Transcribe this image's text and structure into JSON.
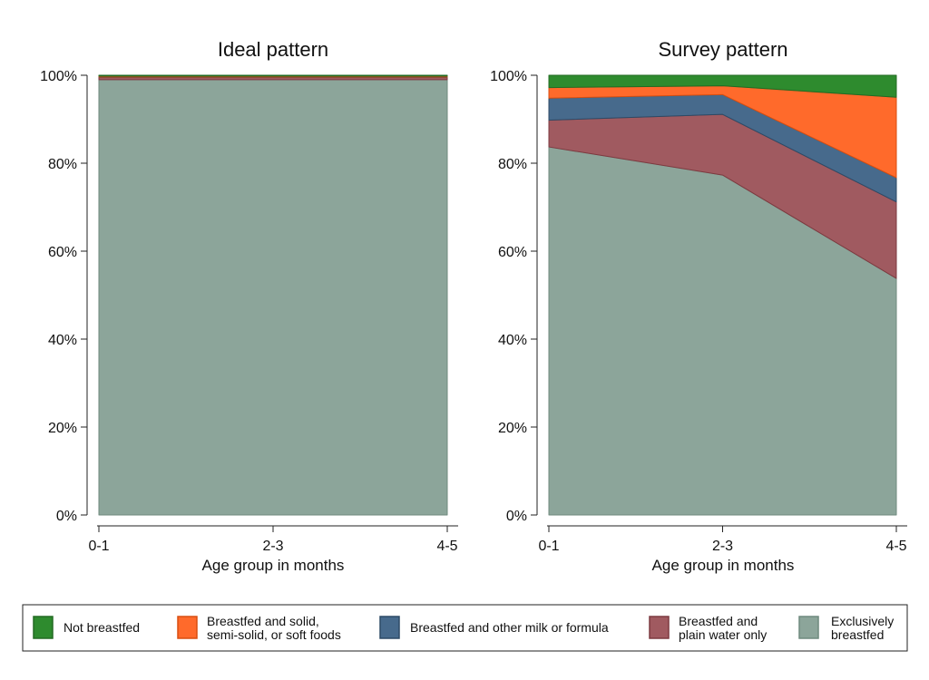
{
  "chart_data": {
    "type": "area",
    "stacked": true,
    "y_format": "percent",
    "ylim": [
      0,
      100
    ],
    "yticks": [
      "0%",
      "20%",
      "40%",
      "60%",
      "80%",
      "100%"
    ],
    "xticks": [
      "0-1",
      "2-3",
      "4-5"
    ],
    "grid": false,
    "legend_position": "bottom",
    "legend": [
      {
        "key": "not_bf",
        "label_lines": [
          "Not breastfed"
        ],
        "color": "#2e8b2e"
      },
      {
        "key": "solid",
        "label_lines": [
          "Breastfed and solid,",
          "semi-solid, or soft foods"
        ],
        "color": "#ff6a2b"
      },
      {
        "key": "milk",
        "label_lines": [
          "Breastfed and other milk or formula"
        ],
        "color": "#476a8c"
      },
      {
        "key": "water",
        "label_lines": [
          "Breastfed and",
          "plain water only"
        ],
        "color": "#a05a60"
      },
      {
        "key": "excl",
        "label_lines": [
          "Exclusively",
          "breastfed"
        ],
        "color": "#8ca59a"
      }
    ],
    "panels": [
      {
        "title": "Ideal pattern",
        "xlabel": "Age group in months",
        "series": [
          {
            "key": "excl",
            "values": [
              99,
              99,
              99
            ]
          },
          {
            "key": "water",
            "values": [
              0.5,
              0.5,
              0.5
            ]
          },
          {
            "key": "milk",
            "values": [
              0.1,
              0.1,
              0.1
            ]
          },
          {
            "key": "solid",
            "values": [
              0.2,
              0.2,
              0.2
            ]
          },
          {
            "key": "not_bf",
            "values": [
              0.2,
              0.2,
              0.2
            ]
          }
        ]
      },
      {
        "title": "Survey pattern",
        "xlabel": "Age group in months",
        "series": [
          {
            "key": "excl",
            "values": [
              83.7,
              77.3,
              53.8
            ]
          },
          {
            "key": "water",
            "values": [
              6.1,
              13.8,
              17.4
            ]
          },
          {
            "key": "milk",
            "values": [
              5.0,
              4.5,
              5.5
            ]
          },
          {
            "key": "solid",
            "values": [
              2.4,
              2.0,
              18.3
            ]
          },
          {
            "key": "not_bf",
            "values": [
              2.8,
              2.4,
              5.0
            ]
          }
        ]
      }
    ]
  }
}
